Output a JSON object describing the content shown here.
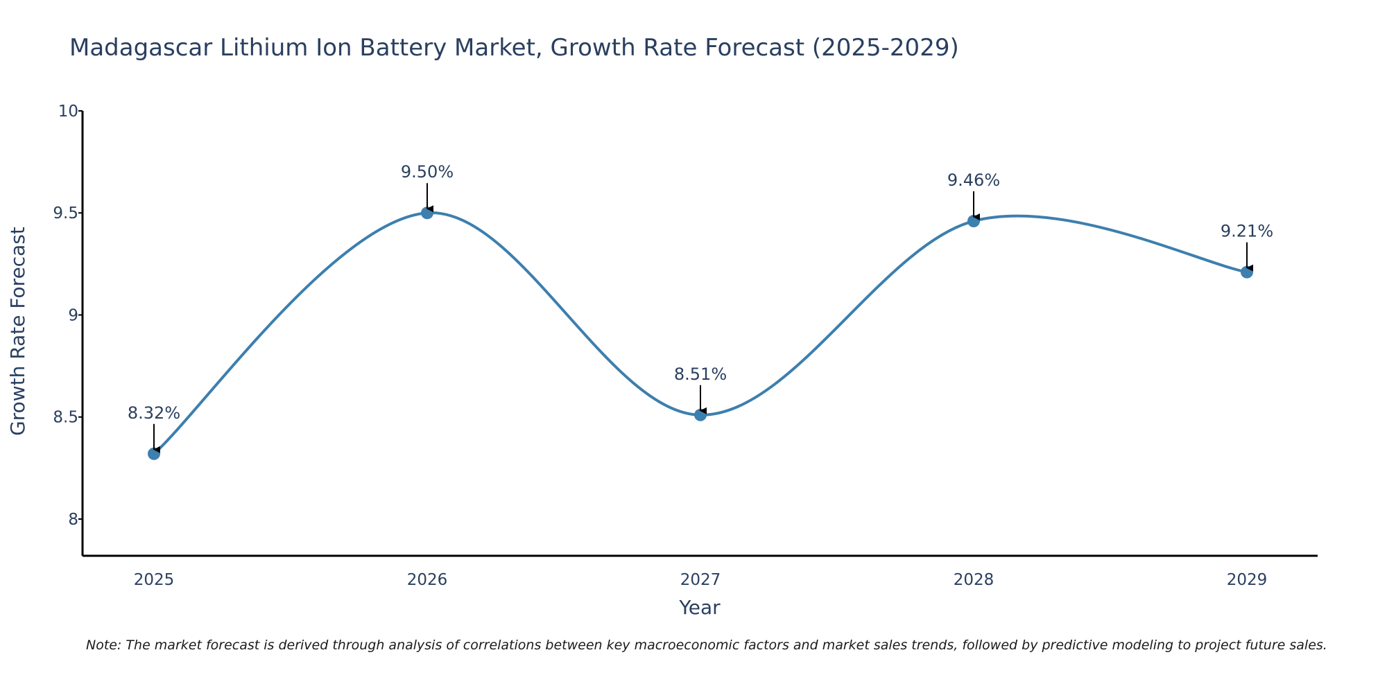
{
  "chart_data": {
    "type": "line",
    "title": "Madagascar Lithium Ion Battery Market, Growth Rate Forecast (2025-2029)",
    "xlabel": "Year",
    "ylabel": "Growth Rate Forecast",
    "categories": [
      "2025",
      "2026",
      "2027",
      "2028",
      "2029"
    ],
    "values": [
      8.32,
      9.5,
      8.51,
      9.46,
      9.21
    ],
    "data_labels": [
      "8.32%",
      "9.50%",
      "8.51%",
      "9.46%",
      "9.21%"
    ],
    "ylim": [
      7.82,
      10
    ],
    "yticks": [
      8,
      8.5,
      9,
      9.5,
      10
    ],
    "ytick_labels": [
      "8",
      "8.5",
      "9",
      "9.5",
      "10"
    ],
    "grid": false,
    "line_shape": "spline",
    "colors": {
      "line": "#3d7fae",
      "marker": "#3d7fae",
      "text": "#2a3f5f",
      "axis": "#000000",
      "arrow": "#000000"
    }
  },
  "note": "Note: The market forecast is derived through analysis of correlations between key macroeconomic factors and market sales trends, followed by predictive modeling to project future sales."
}
